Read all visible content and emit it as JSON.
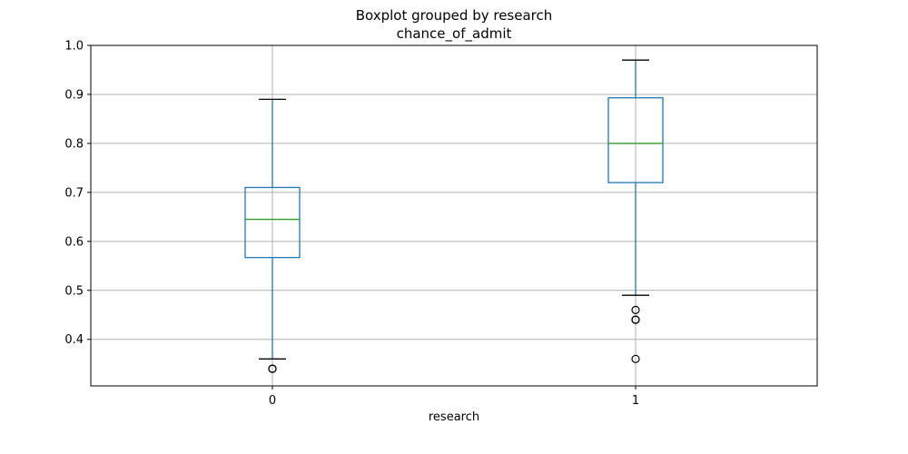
{
  "chart_data": {
    "type": "box",
    "suptitle": "Boxplot grouped by research",
    "title": "chance_of_admit",
    "xlabel": "research",
    "ylabel": "",
    "ylim": [
      0.305,
      1.0
    ],
    "yticks": [
      "0.4",
      "0.5",
      "0.6",
      "0.7",
      "0.8",
      "0.9",
      "1.0"
    ],
    "grid": true,
    "categories": [
      "0",
      "1"
    ],
    "boxes": [
      {
        "category": "0",
        "whisker_low": 0.36,
        "q1": 0.567,
        "median": 0.645,
        "q3": 0.71,
        "whisker_high": 0.89,
        "outliers": [
          0.34,
          0.34
        ]
      },
      {
        "category": "1",
        "whisker_low": 0.49,
        "q1": 0.72,
        "median": 0.8,
        "q3": 0.893,
        "whisker_high": 0.97,
        "outliers": [
          0.46,
          0.44,
          0.44,
          0.36
        ]
      }
    ],
    "colors": {
      "box": "#1f77b4",
      "median": "#2ca02c",
      "whisker_cap": "#000000",
      "grid": "#b0b0b0"
    }
  }
}
